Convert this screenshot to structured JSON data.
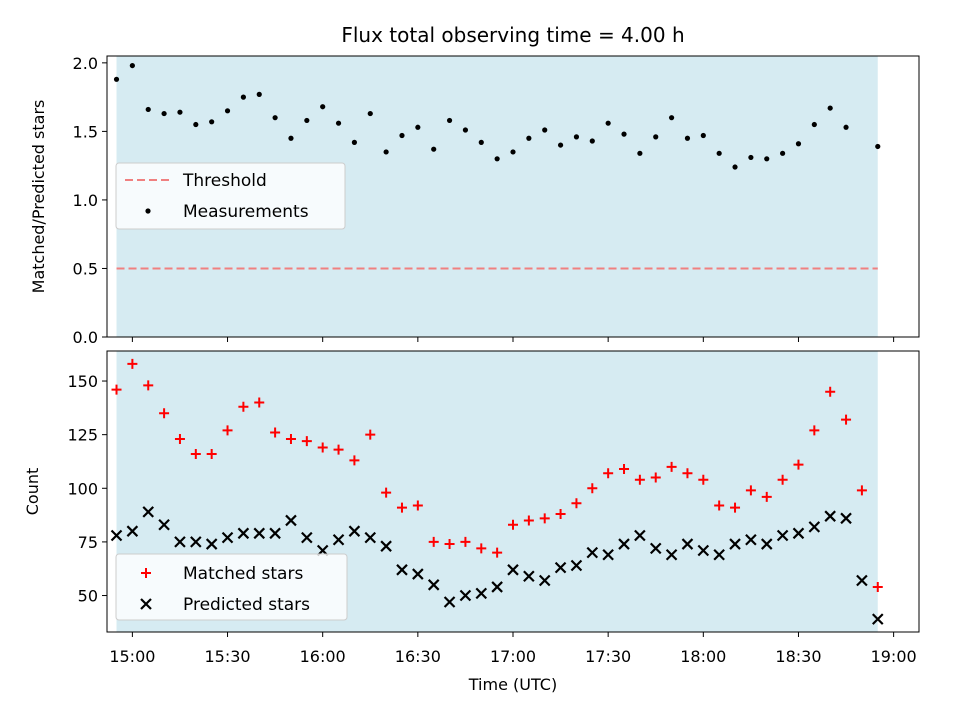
{
  "chart_data": [
    {
      "type": "scatter",
      "title": "Flux total observing time = 4.00 h",
      "xlabel": "",
      "ylabel": "Matched/Predicted stars",
      "xlim": [
        "14:52",
        "19:08"
      ],
      "ylim": [
        0,
        2.05
      ],
      "yticks": [
        0.0,
        0.5,
        1.0,
        1.5,
        2.0
      ],
      "ytick_labels": [
        "0.0",
        "0.5",
        "1.0",
        "1.5",
        "2.0"
      ],
      "grid": false,
      "legend_position": "center-left",
      "observing_window": {
        "start": "14:55",
        "end": "18:55",
        "color": "#add8e6"
      },
      "threshold": {
        "name": "Threshold",
        "value": 0.5,
        "color": "#f08080"
      },
      "series": [
        {
          "name": "Measurements",
          "marker": "dot",
          "color": "#000000",
          "x": [
            "14:55",
            "15:00",
            "15:05",
            "15:10",
            "15:15",
            "15:20",
            "15:25",
            "15:30",
            "15:35",
            "15:40",
            "15:45",
            "15:50",
            "15:55",
            "16:00",
            "16:05",
            "16:10",
            "16:15",
            "16:20",
            "16:25",
            "16:30",
            "16:35",
            "16:40",
            "16:45",
            "16:50",
            "16:55",
            "17:00",
            "17:05",
            "17:10",
            "17:15",
            "17:20",
            "17:25",
            "17:30",
            "17:35",
            "17:40",
            "17:45",
            "17:50",
            "17:55",
            "18:00",
            "18:05",
            "18:10",
            "18:15",
            "18:20",
            "18:25",
            "18:30",
            "18:35",
            "18:40",
            "18:45",
            "18:55"
          ],
          "y": [
            1.88,
            1.98,
            1.66,
            1.63,
            1.64,
            1.55,
            1.57,
            1.65,
            1.75,
            1.77,
            1.6,
            1.45,
            1.58,
            1.68,
            1.56,
            1.42,
            1.63,
            1.35,
            1.47,
            1.53,
            1.37,
            1.58,
            1.51,
            1.42,
            1.3,
            1.35,
            1.45,
            1.51,
            1.4,
            1.46,
            1.43,
            1.56,
            1.48,
            1.34,
            1.46,
            1.6,
            1.45,
            1.47,
            1.34,
            1.24,
            1.31,
            1.3,
            1.34,
            1.41,
            1.55,
            1.67,
            1.53,
            1.39
          ]
        }
      ]
    },
    {
      "type": "scatter",
      "title": "",
      "xlabel": "Time (UTC)",
      "ylabel": "Count",
      "xlim": [
        "14:52",
        "19:08"
      ],
      "ylim": [
        33,
        164
      ],
      "yticks": [
        50,
        75,
        100,
        125,
        150
      ],
      "ytick_labels": [
        "50",
        "75",
        "100",
        "125",
        "150"
      ],
      "xticks": [
        "15:00",
        "15:30",
        "16:00",
        "16:30",
        "17:00",
        "17:30",
        "18:00",
        "18:30",
        "19:00"
      ],
      "grid": false,
      "legend_position": "lower-left",
      "observing_window": {
        "start": "14:55",
        "end": "18:55",
        "color": "#add8e6"
      },
      "series": [
        {
          "name": "Matched stars",
          "marker": "plus",
          "color": "#ff0000",
          "x": [
            "14:55",
            "15:00",
            "15:05",
            "15:10",
            "15:15",
            "15:20",
            "15:25",
            "15:30",
            "15:35",
            "15:40",
            "15:45",
            "15:50",
            "15:55",
            "16:00",
            "16:05",
            "16:10",
            "16:15",
            "16:20",
            "16:25",
            "16:30",
            "16:35",
            "16:40",
            "16:45",
            "16:50",
            "16:55",
            "17:00",
            "17:05",
            "17:10",
            "17:15",
            "17:20",
            "17:25",
            "17:30",
            "17:35",
            "17:40",
            "17:45",
            "17:50",
            "17:55",
            "18:00",
            "18:05",
            "18:10",
            "18:15",
            "18:20",
            "18:25",
            "18:30",
            "18:35",
            "18:40",
            "18:45",
            "18:50",
            "18:55"
          ],
          "y": [
            146,
            158,
            148,
            135,
            123,
            116,
            116,
            127,
            138,
            140,
            126,
            123,
            122,
            119,
            118,
            113,
            125,
            98,
            91,
            92,
            75,
            74,
            75,
            72,
            70,
            83,
            85,
            86,
            88,
            93,
            100,
            107,
            109,
            104,
            105,
            110,
            107,
            104,
            92,
            91,
            99,
            96,
            104,
            111,
            127,
            145,
            132,
            99,
            54
          ]
        },
        {
          "name": "Predicted stars",
          "marker": "x",
          "color": "#000000",
          "x": [
            "14:55",
            "15:00",
            "15:05",
            "15:10",
            "15:15",
            "15:20",
            "15:25",
            "15:30",
            "15:35",
            "15:40",
            "15:45",
            "15:50",
            "15:55",
            "16:00",
            "16:05",
            "16:10",
            "16:15",
            "16:20",
            "16:25",
            "16:30",
            "16:35",
            "16:40",
            "16:45",
            "16:50",
            "16:55",
            "17:00",
            "17:05",
            "17:10",
            "17:15",
            "17:20",
            "17:25",
            "17:30",
            "17:35",
            "17:40",
            "17:45",
            "17:50",
            "17:55",
            "18:00",
            "18:05",
            "18:10",
            "18:15",
            "18:20",
            "18:25",
            "18:30",
            "18:35",
            "18:40",
            "18:45",
            "18:50",
            "18:55"
          ],
          "y": [
            78,
            80,
            89,
            83,
            75,
            75,
            74,
            77,
            79,
            79,
            79,
            85,
            77,
            71,
            76,
            80,
            77,
            73,
            62,
            60,
            55,
            47,
            50,
            51,
            54,
            62,
            59,
            57,
            63,
            64,
            70,
            69,
            74,
            78,
            72,
            69,
            74,
            71,
            69,
            74,
            76,
            74,
            78,
            79,
            82,
            87,
            86,
            57,
            39
          ]
        }
      ]
    }
  ]
}
